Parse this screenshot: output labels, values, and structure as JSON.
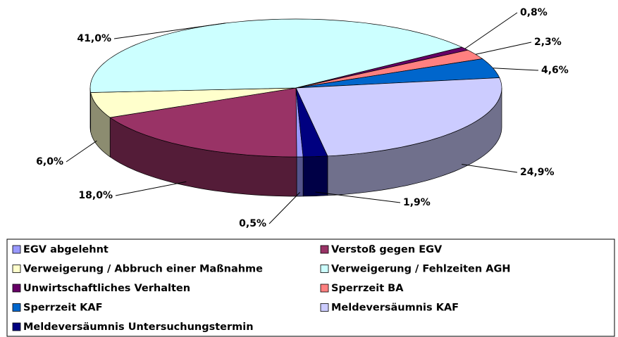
{
  "chart_data": {
    "type": "pie",
    "categories": [
      "EGV abgelehnt",
      "Verstoß gegen EGV",
      "Verweigerung / Abbruch einer Maßnahme",
      "Verweigerung / Fehlzeiten AGH",
      "Unwirtschaftliches Verhalten",
      "Sperrzeit BA",
      "Sperrzeit KAF",
      "Meldeversäumnis KAF",
      "Meldeversäumnis Untersuchungstermin"
    ],
    "values": [
      0.5,
      18.0,
      6.0,
      41.0,
      0.8,
      2.3,
      4.6,
      24.9,
      1.9
    ],
    "value_labels": [
      "0,5%",
      "18,0%",
      "6,0%",
      "41,0%",
      "0,8%",
      "2,3%",
      "4,6%",
      "24,9%",
      "1,9%"
    ],
    "colors": [
      "#9999ff",
      "#993366",
      "#ffffcc",
      "#ccffff",
      "#660066",
      "#ff8080",
      "#0066cc",
      "#ccccff",
      "#000080"
    ]
  }
}
